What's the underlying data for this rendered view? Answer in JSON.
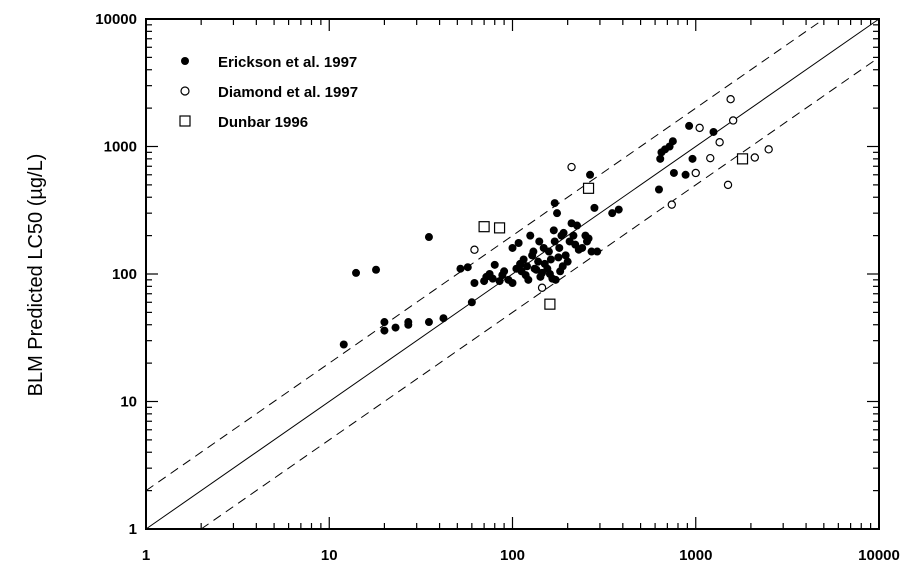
{
  "chart_data": {
    "type": "scatter",
    "title": "",
    "xlabel": "",
    "ylabel": "BLM Predicted LC50 (µg/L)",
    "xscale": "log",
    "yscale": "log",
    "xlim": [
      1,
      10000
    ],
    "ylim": [
      1,
      10000
    ],
    "x_tick_labels": [
      "1",
      "10",
      "100",
      "1000",
      "10000"
    ],
    "y_tick_labels": [
      "1",
      "10",
      "100",
      "1000",
      "10000"
    ],
    "grid": false,
    "legend_position": "top-left",
    "reference_lines": [
      {
        "style": "solid",
        "factor": 1
      },
      {
        "style": "dashed",
        "factor": 2
      },
      {
        "style": "dashed",
        "factor": 0.5
      }
    ],
    "series": [
      {
        "name": "Erickson et al. 1997",
        "marker": "filled-circle",
        "points": [
          [
            12,
            28
          ],
          [
            14,
            102
          ],
          [
            18,
            108
          ],
          [
            20,
            36
          ],
          [
            20,
            42
          ],
          [
            23,
            38
          ],
          [
            27,
            42
          ],
          [
            27,
            40
          ],
          [
            35,
            42
          ],
          [
            35,
            195
          ],
          [
            42,
            45
          ],
          [
            52,
            110
          ],
          [
            57,
            113
          ],
          [
            60,
            60
          ],
          [
            62,
            85
          ],
          [
            70,
            88
          ],
          [
            72,
            95
          ],
          [
            75,
            100
          ],
          [
            78,
            92
          ],
          [
            80,
            118
          ],
          [
            85,
            88
          ],
          [
            88,
            98
          ],
          [
            90,
            105
          ],
          [
            95,
            90
          ],
          [
            100,
            85
          ],
          [
            100,
            160
          ],
          [
            105,
            110
          ],
          [
            108,
            175
          ],
          [
            110,
            120
          ],
          [
            112,
            105
          ],
          [
            115,
            130
          ],
          [
            118,
            98
          ],
          [
            120,
            115
          ],
          [
            122,
            90
          ],
          [
            125,
            200
          ],
          [
            128,
            140
          ],
          [
            130,
            150
          ],
          [
            132,
            110
          ],
          [
            135,
            108
          ],
          [
            138,
            125
          ],
          [
            140,
            180
          ],
          [
            142,
            95
          ],
          [
            145,
            102
          ],
          [
            148,
            160
          ],
          [
            150,
            120
          ],
          [
            155,
            110
          ],
          [
            158,
            150
          ],
          [
            160,
            100
          ],
          [
            162,
            130
          ],
          [
            165,
            92
          ],
          [
            168,
            220
          ],
          [
            170,
            180
          ],
          [
            172,
            90
          ],
          [
            175,
            300
          ],
          [
            178,
            135
          ],
          [
            180,
            160
          ],
          [
            182,
            105
          ],
          [
            185,
            200
          ],
          [
            188,
            115
          ],
          [
            190,
            210
          ],
          [
            195,
            140
          ],
          [
            200,
            125
          ],
          [
            205,
            180
          ],
          [
            210,
            250
          ],
          [
            215,
            200
          ],
          [
            220,
            170
          ],
          [
            225,
            240
          ],
          [
            230,
            155
          ],
          [
            240,
            160
          ],
          [
            250,
            200
          ],
          [
            255,
            180
          ],
          [
            260,
            190
          ],
          [
            265,
            600
          ],
          [
            270,
            150
          ],
          [
            280,
            330
          ],
          [
            290,
            150
          ],
          [
            350,
            300
          ],
          [
            380,
            320
          ],
          [
            630,
            460
          ],
          [
            640,
            800
          ],
          [
            650,
            900
          ],
          [
            680,
            950
          ],
          [
            720,
            1000
          ],
          [
            750,
            1100
          ],
          [
            760,
            620
          ],
          [
            880,
            600
          ],
          [
            920,
            1450
          ],
          [
            960,
            800
          ],
          [
            1250,
            1300
          ],
          [
            170,
            360
          ]
        ]
      },
      {
        "name": "Diamond et al. 1997",
        "marker": "open-circle",
        "points": [
          [
            62,
            155
          ],
          [
            145,
            78
          ],
          [
            210,
            690
          ],
          [
            740,
            350
          ],
          [
            1000,
            620
          ],
          [
            1050,
            1400
          ],
          [
            1200,
            810
          ],
          [
            1350,
            1080
          ],
          [
            1500,
            500
          ],
          [
            1550,
            2350
          ],
          [
            1600,
            1600
          ],
          [
            2100,
            820
          ],
          [
            2500,
            950
          ]
        ]
      },
      {
        "name": "Dunbar 1996",
        "marker": "open-square",
        "points": [
          [
            70,
            235
          ],
          [
            85,
            230
          ],
          [
            160,
            58
          ],
          [
            260,
            470
          ],
          [
            1800,
            800
          ]
        ]
      }
    ]
  }
}
